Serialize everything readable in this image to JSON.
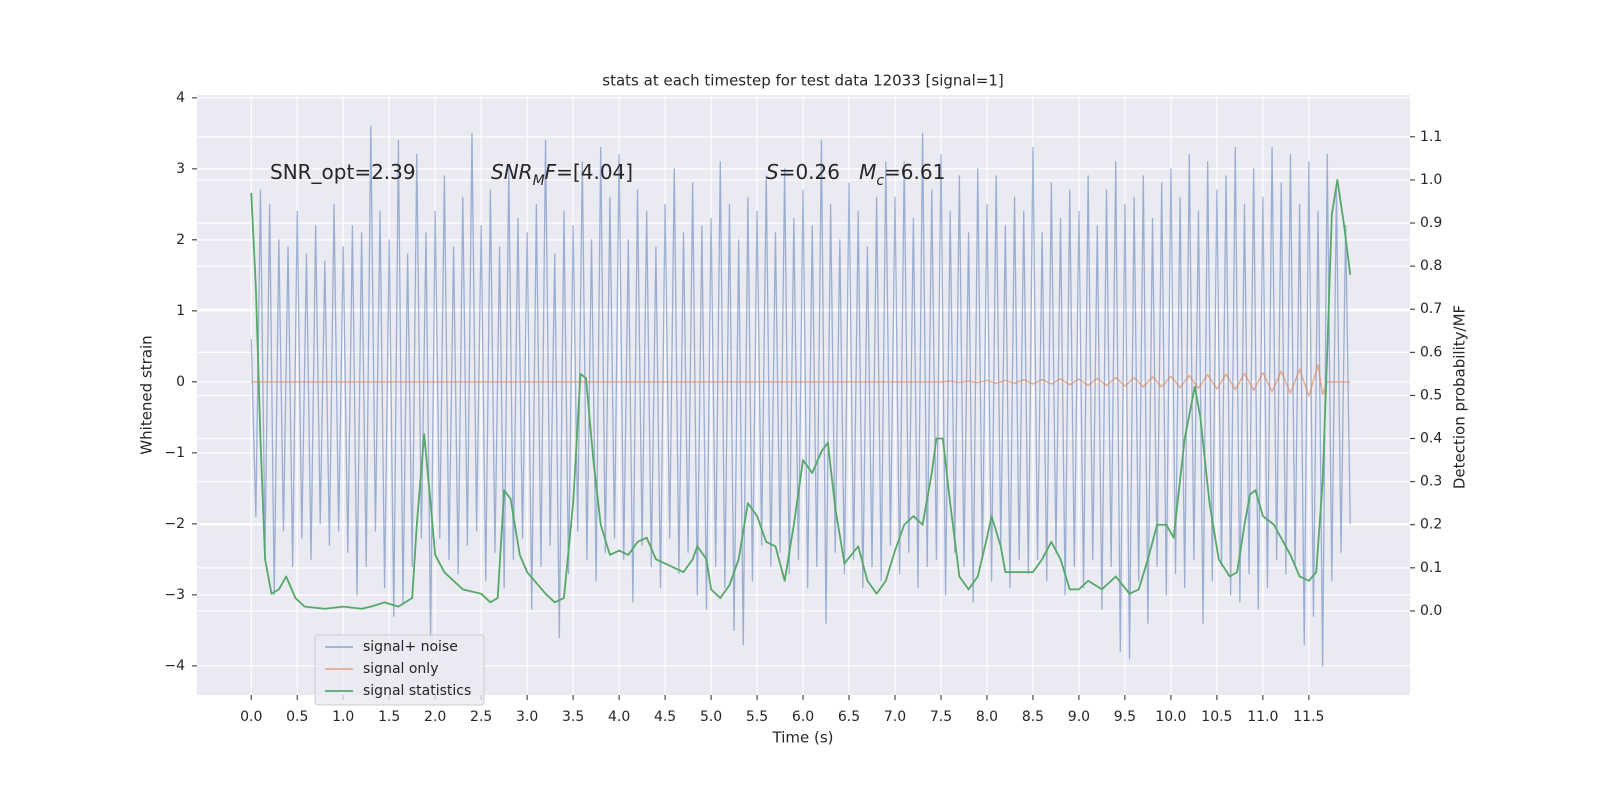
{
  "chart_data": {
    "type": "line",
    "title": "stats at each timestep for test data 12033 [signal=1]",
    "xlabel": "Time (s)",
    "ylabel": "Whitened strain",
    "y2label": "Detection probability/MF",
    "xlim": [
      -0.59,
      12.6
    ],
    "ylim": [
      -4.41,
      4.04
    ],
    "y2lim": [
      -0.195,
      1.197
    ],
    "xticks": [
      {
        "value": 0,
        "label": "0.0"
      },
      0.5,
      {
        "value": 1,
        "label": "1.0"
      },
      1.5,
      {
        "value": 2,
        "label": "2.0"
      },
      2.5,
      {
        "value": 3,
        "label": "3.0"
      },
      3.5,
      {
        "value": 4,
        "label": "4.0"
      },
      4.5,
      {
        "value": 5,
        "label": "5.0"
      },
      5.5,
      {
        "value": 6,
        "label": "6.0"
      },
      6.5,
      {
        "value": 7,
        "label": "7.0"
      },
      7.5,
      {
        "value": 8,
        "label": "8.0"
      },
      8.5,
      {
        "value": 9,
        "label": "9.0"
      },
      9.5,
      {
        "value": 10,
        "label": "10.0"
      },
      10.5,
      {
        "value": 11,
        "label": "11.0"
      },
      11.5
    ],
    "yticks": [
      {
        "value": -4,
        "label": "−4"
      },
      {
        "value": -3,
        "label": "−3"
      },
      {
        "value": -2,
        "label": "−2"
      },
      {
        "value": -1,
        "label": "−1"
      },
      0,
      1,
      2,
      3,
      4
    ],
    "y2ticks": [
      {
        "value": 0,
        "label": "0.0"
      },
      0.1,
      0.2,
      0.3,
      0.4,
      0.5,
      0.6,
      0.7,
      0.8,
      0.9,
      {
        "value": 1,
        "label": "1.0"
      },
      1.1
    ],
    "grid": true,
    "legend": "lower left",
    "annotations": [
      {
        "parts": [
          {
            "text": "SNR_opt=2.39"
          }
        ]
      },
      {
        "parts": [
          {
            "text": "SNR",
            "italic": true
          },
          {
            "text": "M",
            "italic": true,
            "sub": true
          },
          {
            "text": "F",
            "italic": true
          },
          {
            "text": "=[4.04]"
          }
        ]
      },
      {
        "parts": [
          {
            "text": "S",
            "italic": true
          },
          {
            "text": "=0.26   "
          },
          {
            "text": "M",
            "italic": true
          },
          {
            "text": "c",
            "italic": true,
            "sub": true
          },
          {
            "text": "=6.61"
          }
        ]
      }
    ],
    "series": [
      {
        "name": "signal+ noise",
        "color": "#4c72b0",
        "x": [
          0,
          0.05,
          0.1,
          0.15,
          0.2,
          0.25,
          0.3,
          0.35,
          0.4,
          0.45,
          0.5,
          0.55,
          0.6,
          0.65,
          0.7,
          0.75,
          0.8,
          0.85,
          0.9,
          0.95,
          1,
          1.05,
          1.1,
          1.15,
          1.2,
          1.25,
          1.3,
          1.35,
          1.4,
          1.45,
          1.5,
          1.55,
          1.6,
          1.65,
          1.7,
          1.75,
          1.8,
          1.85,
          1.9,
          1.95,
          2,
          2.05,
          2.1,
          2.15,
          2.2,
          2.25,
          2.3,
          2.35,
          2.4,
          2.45,
          2.5,
          2.55,
          2.6,
          2.65,
          2.7,
          2.75,
          2.8,
          2.85,
          2.9,
          2.95,
          3,
          3.05,
          3.1,
          3.15,
          3.2,
          3.25,
          3.3,
          3.35,
          3.4,
          3.45,
          3.5,
          3.55,
          3.6,
          3.65,
          3.7,
          3.75,
          3.8,
          3.85,
          3.9,
          3.95,
          4,
          4.05,
          4.1,
          4.15,
          4.2,
          4.25,
          4.3,
          4.35,
          4.4,
          4.45,
          4.5,
          4.55,
          4.6,
          4.65,
          4.7,
          4.75,
          4.8,
          4.85,
          4.9,
          4.95,
          5,
          5.05,
          5.1,
          5.15,
          5.2,
          5.25,
          5.3,
          5.35,
          5.4,
          5.45,
          5.5,
          5.55,
          5.6,
          5.65,
          5.7,
          5.75,
          5.8,
          5.85,
          5.9,
          5.95,
          6,
          6.05,
          6.1,
          6.15,
          6.2,
          6.25,
          6.3,
          6.35,
          6.4,
          6.45,
          6.5,
          6.55,
          6.6,
          6.65,
          6.7,
          6.75,
          6.8,
          6.85,
          6.9,
          6.95,
          7,
          7.05,
          7.1,
          7.15,
          7.2,
          7.25,
          7.3,
          7.35,
          7.4,
          7.45,
          7.5,
          7.55,
          7.6,
          7.65,
          7.7,
          7.75,
          7.8,
          7.85,
          7.9,
          7.95,
          8,
          8.05,
          8.1,
          8.15,
          8.2,
          8.25,
          8.3,
          8.35,
          8.4,
          8.45,
          8.5,
          8.55,
          8.6,
          8.65,
          8.7,
          8.75,
          8.8,
          8.85,
          8.9,
          8.95,
          9,
          9.05,
          9.1,
          9.15,
          9.2,
          9.25,
          9.3,
          9.35,
          9.4,
          9.45,
          9.5,
          9.55,
          9.6,
          9.65,
          9.7,
          9.75,
          9.8,
          9.85,
          9.9,
          9.95,
          10,
          10.05,
          10.1,
          10.15,
          10.2,
          10.25,
          10.3,
          10.35,
          10.4,
          10.45,
          10.5,
          10.55,
          10.6,
          10.65,
          10.7,
          10.75,
          10.8,
          10.85,
          10.9,
          10.95,
          11,
          11.05,
          11.1,
          11.15,
          11.2,
          11.25,
          11.3,
          11.35,
          11.4,
          11.45,
          11.5,
          11.55,
          11.6,
          11.65,
          11.7,
          11.75,
          11.8,
          11.85,
          11.9,
          11.95
        ],
        "values": [
          0.6,
          -1.9,
          2.7,
          -2.4,
          2.5,
          -3.0,
          2.0,
          -2.1,
          1.9,
          -2.6,
          2.4,
          -2.2,
          1.8,
          -2.5,
          2.2,
          -2.0,
          1.7,
          -2.3,
          2.5,
          -2.1,
          1.9,
          -2.4,
          2.2,
          -3.0,
          2.1,
          -2.6,
          3.6,
          -2.1,
          2.4,
          -2.9,
          2.0,
          -3.3,
          3.4,
          -3.1,
          1.8,
          -2.6,
          3.2,
          -2.2,
          2.1,
          -3.6,
          2.4,
          -2.2,
          2.9,
          -2.5,
          1.9,
          -2.7,
          2.6,
          -2.3,
          3.5,
          -2.1,
          2.2,
          -2.8,
          2.7,
          -2.4,
          1.9,
          -2.9,
          3.0,
          -2.5,
          2.3,
          -2.2,
          2.1,
          -3.2,
          2.5,
          -2.6,
          3.4,
          -2.3,
          1.8,
          -3.6,
          2.4,
          -2.7,
          2.2,
          -2.1,
          3.1,
          -2.5,
          2.0,
          -2.8,
          3.3,
          -2.4,
          2.6,
          -2.2,
          3.2,
          -2.5,
          2.0,
          -3.1,
          2.7,
          -2.3,
          2.4,
          -2.6,
          1.9,
          -2.9,
          2.5,
          -2.2,
          3.0,
          -2.7,
          2.1,
          -2.4,
          2.8,
          -3.0,
          2.2,
          -3.2,
          2.3,
          -2.6,
          3.1,
          -2.9,
          2.5,
          -3.5,
          2.0,
          -3.7,
          2.6,
          -2.8,
          2.4,
          -2.3,
          2.9,
          -2.6,
          2.1,
          -2.4,
          3.0,
          -2.7,
          2.3,
          -2.5,
          2.7,
          -2.9,
          2.2,
          -2.6,
          3.4,
          -3.4,
          2.5,
          -2.4,
          2.0,
          -2.7,
          2.8,
          -2.5,
          2.4,
          -2.9,
          1.9,
          -2.6,
          2.6,
          -2.8,
          3.1,
          -2.3,
          2.6,
          -2.7,
          3.1,
          -2.4,
          2.3,
          -2.9,
          3.5,
          -2.6,
          2.7,
          -2.5,
          3.2,
          -3.0,
          2.4,
          -2.4,
          2.9,
          -2.6,
          2.1,
          -3.1,
          3.0,
          -2.5,
          2.5,
          -2.8,
          2.9,
          -2.3,
          2.2,
          -2.9,
          2.6,
          -2.5,
          2.4,
          -2.7,
          3.3,
          -2.5,
          2.1,
          -2.8,
          2.8,
          -2.4,
          2.3,
          -3.0,
          2.7,
          -2.6,
          2.4,
          -2.9,
          2.9,
          -2.5,
          2.2,
          -3.2,
          2.7,
          -2.6,
          3.1,
          -3.8,
          2.5,
          -3.9,
          2.6,
          -2.8,
          2.9,
          -3.4,
          2.3,
          -2.6,
          2.8,
          -3.0,
          3.0,
          -2.7,
          2.6,
          -2.9,
          3.2,
          -2.5,
          2.4,
          -3.4,
          3.1,
          -2.8,
          2.7,
          -2.6,
          2.9,
          -3.0,
          3.3,
          -3.1,
          2.5,
          -2.7,
          3.0,
          -3.2,
          2.6,
          -2.9,
          3.3,
          -2.5,
          2.8,
          -2.7,
          3.2,
          -2.6,
          2.5,
          -3.7,
          3.1,
          -3.3,
          2.4,
          -4.0,
          3.2,
          -2.8,
          2.7,
          -2.4,
          2.2,
          -2.0
        ]
      },
      {
        "name": "signal only",
        "color": "#dd8452",
        "x": [
          0,
          1,
          2,
          3,
          4,
          5,
          6,
          7,
          7.5,
          7.6,
          7.7,
          7.8,
          7.9,
          8,
          8.1,
          8.2,
          8.3,
          8.4,
          8.5,
          8.6,
          8.7,
          8.8,
          8.9,
          9,
          9.1,
          9.2,
          9.3,
          9.4,
          9.5,
          9.6,
          9.7,
          9.8,
          9.9,
          10,
          10.1,
          10.2,
          10.3,
          10.4,
          10.5,
          10.6,
          10.7,
          10.8,
          10.9,
          11,
          11.1,
          11.2,
          11.3,
          11.4,
          11.5,
          11.6,
          11.65,
          11.7,
          11.8,
          11.95
        ],
        "values": [
          0,
          0,
          0,
          0,
          0,
          0,
          0,
          0,
          0,
          0.01,
          -0.01,
          0.01,
          -0.01,
          0.02,
          -0.02,
          0.02,
          -0.02,
          0.03,
          -0.03,
          0.03,
          -0.03,
          0.04,
          -0.04,
          0.04,
          -0.05,
          0.05,
          -0.05,
          0.06,
          -0.06,
          0.06,
          -0.07,
          0.07,
          -0.07,
          0.08,
          -0.08,
          0.09,
          -0.09,
          0.1,
          -0.1,
          0.11,
          -0.11,
          0.12,
          -0.12,
          0.13,
          -0.14,
          0.15,
          -0.16,
          0.18,
          -0.2,
          0.24,
          -0.18,
          0,
          0,
          0
        ]
      },
      {
        "name": "signal statistics",
        "color": "#55a868",
        "axis": "y2",
        "x": [
          0,
          0.05,
          0.1,
          0.15,
          0.22,
          0.3,
          0.38,
          0.48,
          0.58,
          0.8,
          1,
          1.2,
          1.3,
          1.45,
          1.6,
          1.75,
          1.8,
          1.88,
          1.95,
          2,
          2.1,
          2.3,
          2.5,
          2.6,
          2.68,
          2.75,
          2.82,
          2.92,
          3,
          3.2,
          3.3,
          3.4,
          3.5,
          3.58,
          3.64,
          3.72,
          3.8,
          3.9,
          4,
          4.1,
          4.2,
          4.3,
          4.4,
          4.6,
          4.7,
          4.8,
          4.85,
          4.95,
          5,
          5.1,
          5.2,
          5.3,
          5.4,
          5.5,
          5.6,
          5.7,
          5.8,
          5.9,
          6,
          6.1,
          6.2,
          6.27,
          6.35,
          6.45,
          6.6,
          6.7,
          6.8,
          6.9,
          7,
          7.1,
          7.2,
          7.3,
          7.4,
          7.45,
          7.52,
          7.6,
          7.7,
          7.8,
          7.9,
          8,
          8.05,
          8.15,
          8.2,
          8.35,
          8.5,
          8.6,
          8.7,
          8.8,
          8.9,
          9,
          9.1,
          9.25,
          9.4,
          9.55,
          9.65,
          9.75,
          9.85,
          9.95,
          10.03,
          10.15,
          10.26,
          10.32,
          10.42,
          10.52,
          10.64,
          10.72,
          10.8,
          10.86,
          10.92,
          11,
          11.12,
          11.3,
          11.4,
          11.5,
          11.58,
          11.65,
          11.7,
          11.75,
          11.81,
          11.88,
          11.95
        ],
        "values": [
          0.97,
          0.75,
          0.4,
          0.12,
          0.04,
          0.05,
          0.08,
          0.03,
          0.01,
          0.005,
          0.01,
          0.005,
          0.01,
          0.02,
          0.01,
          0.03,
          0.2,
          0.41,
          0.25,
          0.13,
          0.09,
          0.05,
          0.04,
          0.02,
          0.03,
          0.28,
          0.26,
          0.13,
          0.09,
          0.04,
          0.02,
          0.03,
          0.25,
          0.55,
          0.54,
          0.35,
          0.2,
          0.13,
          0.14,
          0.13,
          0.16,
          0.17,
          0.12,
          0.1,
          0.09,
          0.12,
          0.15,
          0.12,
          0.05,
          0.03,
          0.06,
          0.12,
          0.25,
          0.22,
          0.16,
          0.15,
          0.07,
          0.2,
          0.35,
          0.32,
          0.37,
          0.39,
          0.24,
          0.11,
          0.15,
          0.07,
          0.04,
          0.07,
          0.14,
          0.2,
          0.22,
          0.2,
          0.32,
          0.4,
          0.4,
          0.25,
          0.08,
          0.05,
          0.08,
          0.17,
          0.22,
          0.15,
          0.09,
          0.09,
          0.09,
          0.12,
          0.16,
          0.12,
          0.05,
          0.05,
          0.07,
          0.05,
          0.08,
          0.04,
          0.05,
          0.12,
          0.2,
          0.2,
          0.17,
          0.4,
          0.52,
          0.45,
          0.25,
          0.12,
          0.08,
          0.09,
          0.2,
          0.27,
          0.28,
          0.22,
          0.2,
          0.13,
          0.08,
          0.07,
          0.09,
          0.3,
          0.6,
          0.92,
          1.0,
          0.9,
          0.78
        ]
      }
    ]
  }
}
